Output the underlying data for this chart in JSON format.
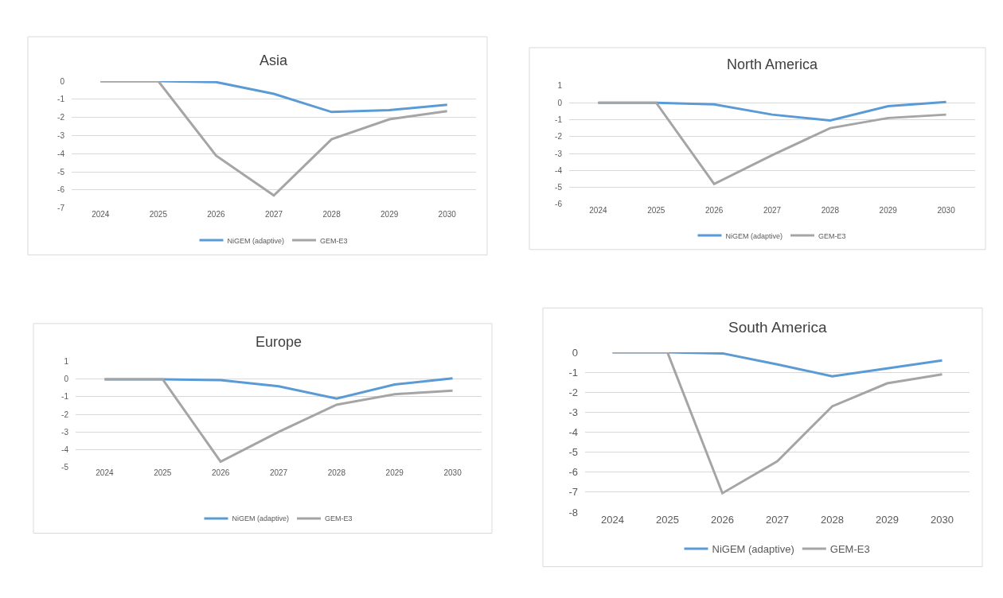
{
  "chart_data": [
    {
      "type": "line",
      "title": "Asia",
      "categories": [
        "2024",
        "2025",
        "2026",
        "2027",
        "2028",
        "2029",
        "2030"
      ],
      "ylim": [
        -7,
        0
      ],
      "yticks": [
        -7,
        -6,
        -5,
        -4,
        -3,
        -2,
        -1,
        0
      ],
      "grid": "y",
      "legend": "bottom",
      "marker": "none",
      "series": [
        {
          "name": "NiGEM (adaptive)",
          "color": "#5b9bd5",
          "values": [
            0,
            0,
            -0.05,
            -0.7,
            -1.7,
            -1.6,
            -1.3
          ]
        },
        {
          "name": "GEM-E3",
          "color": "#a5a5a5",
          "values": [
            0,
            0,
            -4.1,
            -6.3,
            -3.2,
            -2.1,
            -1.65
          ]
        }
      ]
    },
    {
      "type": "line",
      "title": "North America",
      "categories": [
        "2024",
        "2025",
        "2026",
        "2027",
        "2028",
        "2029",
        "2030"
      ],
      "ylim": [
        -6,
        1
      ],
      "yticks": [
        -6,
        -5,
        -4,
        -3,
        -2,
        -1,
        0,
        1
      ],
      "grid": "y",
      "legend": "bottom",
      "marker": "none",
      "series": [
        {
          "name": "NiGEM (adaptive)",
          "color": "#5b9bd5",
          "values": [
            0,
            0,
            -0.1,
            -0.7,
            -1.05,
            -0.2,
            0.05
          ]
        },
        {
          "name": "GEM-E3",
          "color": "#a5a5a5",
          "values": [
            0,
            0,
            -4.8,
            -3.1,
            -1.5,
            -0.9,
            -0.7
          ]
        }
      ]
    },
    {
      "type": "line",
      "title": "Europe",
      "categories": [
        "2024",
        "2025",
        "2026",
        "2027",
        "2028",
        "2029",
        "2030"
      ],
      "ylim": [
        -5,
        1
      ],
      "yticks": [
        -5,
        -4,
        -3,
        -2,
        -1,
        0,
        1
      ],
      "grid": "y",
      "legend": "bottom",
      "marker": "none",
      "series": [
        {
          "name": "NiGEM (adaptive)",
          "color": "#5b9bd5",
          "values": [
            0,
            0,
            -0.05,
            -0.4,
            -1.1,
            -0.3,
            0.05
          ]
        },
        {
          "name": "GEM-E3",
          "color": "#a5a5a5",
          "values": [
            0,
            0,
            -4.7,
            -3.0,
            -1.45,
            -0.85,
            -0.65
          ]
        }
      ]
    },
    {
      "type": "line",
      "title": "South America",
      "categories": [
        "2024",
        "2025",
        "2026",
        "2027",
        "2028",
        "2029",
        "2030"
      ],
      "ylim": [
        -8,
        0
      ],
      "yticks": [
        -8,
        -7,
        -6,
        -5,
        -4,
        -3,
        -2,
        -1,
        0
      ],
      "grid": "y",
      "legend": "bottom",
      "marker": "none",
      "series": [
        {
          "name": "NiGEM (adaptive)",
          "color": "#5b9bd5",
          "values": [
            0,
            0,
            -0.05,
            -0.6,
            -1.2,
            -0.8,
            -0.4
          ]
        },
        {
          "name": "GEM-E3",
          "color": "#a5a5a5",
          "values": [
            0,
            0,
            -7.05,
            -5.45,
            -2.7,
            -1.55,
            -1.1
          ]
        }
      ]
    }
  ]
}
